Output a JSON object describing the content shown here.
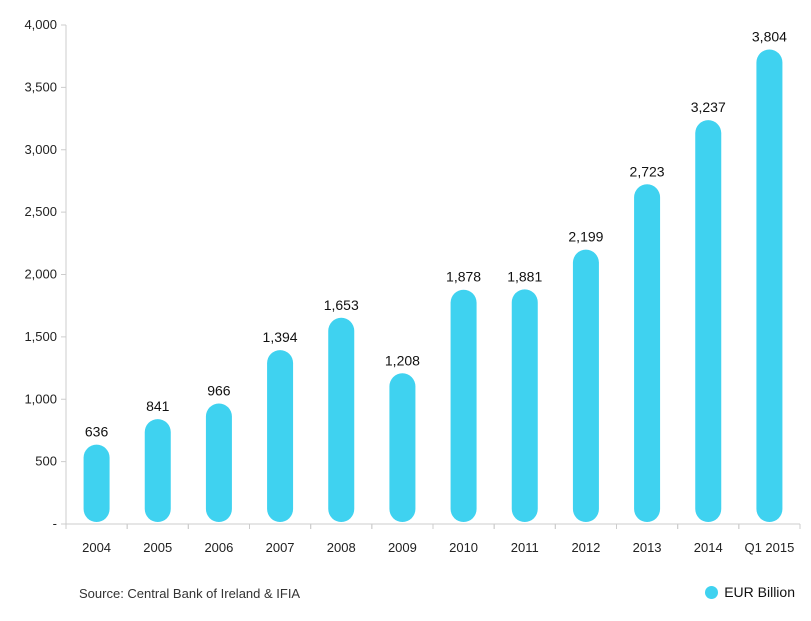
{
  "colors": {
    "bar": "#3fd2f0",
    "axis": "#cccccc",
    "text": "#222222"
  },
  "chart_data": {
    "type": "bar",
    "categories": [
      "2004",
      "2005",
      "2006",
      "2007",
      "2008",
      "2009",
      "2010",
      "2011",
      "2012",
      "2013",
      "2014",
      "Q1 2015"
    ],
    "series": [
      {
        "name": "EUR Billion",
        "values": [
          636,
          841,
          966,
          1394,
          1653,
          1208,
          1878,
          1881,
          2199,
          2723,
          3237,
          3804
        ]
      }
    ],
    "data_labels": [
      "636",
      "841",
      "966",
      "1,394",
      "1,653",
      "1,208",
      "1,878",
      "1,881",
      "2,199",
      "2,723",
      "3,237",
      "3,804"
    ],
    "y_ticks": [
      0,
      500,
      1000,
      1500,
      2000,
      2500,
      3000,
      3500,
      4000
    ],
    "y_tick_labels": [
      "-",
      "500",
      "1,000",
      "1,500",
      "2,000",
      "2,500",
      "3,000",
      "3,500",
      "4,000"
    ],
    "ylim": [
      0,
      4000
    ],
    "grid": false,
    "legend_position": "bottom-right"
  },
  "footer": {
    "source": "Source: Central Bank of Ireland & IFIA"
  },
  "legend": {
    "label": "EUR Billion"
  }
}
